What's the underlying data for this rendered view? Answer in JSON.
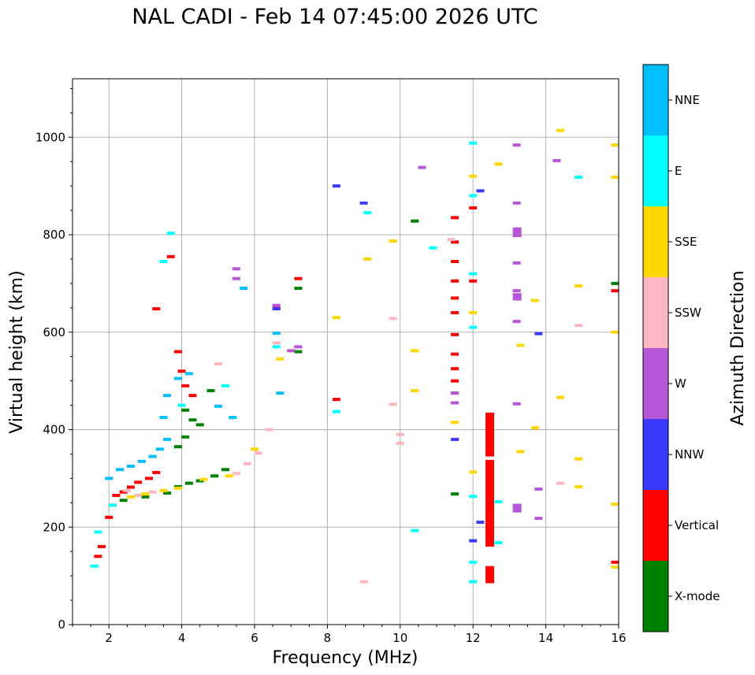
{
  "colors": {
    "X-mode": "#008000",
    "Vertical": "#ff0000",
    "NNW": "#3a3aff",
    "W": "#b557d6",
    "SSW": "#ffb6c1",
    "SSE": "#ffd700",
    "E": "#00ffff",
    "NNE": "#00bfff",
    "grid": "#b0b0b0"
  },
  "chart_data": {
    "type": "scatter",
    "title": "NAL CADI - Feb 14 07:45:00 2026 UTC",
    "xlabel": "Frequency (MHz)",
    "ylabel": "Virtual height (km)",
    "xlim": [
      1,
      16
    ],
    "ylim": [
      0,
      1120
    ],
    "xticks": [
      2,
      4,
      6,
      8,
      10,
      12,
      14,
      16
    ],
    "yticks": [
      0,
      200,
      400,
      600,
      800,
      1000
    ],
    "grid": true,
    "colorbar": {
      "label": "Azimuth Direction",
      "categories": [
        "X-mode",
        "Vertical",
        "NNW",
        "W",
        "SSW",
        "SSE",
        "E",
        "NNE"
      ]
    },
    "series": [
      {
        "name": "X-mode",
        "points": [
          [
            2.4,
            255
          ],
          [
            3.0,
            262
          ],
          [
            3.6,
            270
          ],
          [
            3.9,
            283
          ],
          [
            4.2,
            290
          ],
          [
            4.5,
            295
          ],
          [
            4.9,
            305
          ],
          [
            5.2,
            318
          ],
          [
            4.1,
            440
          ],
          [
            4.3,
            420
          ],
          [
            4.5,
            410
          ],
          [
            4.8,
            480
          ],
          [
            4.1,
            385
          ],
          [
            3.9,
            365
          ],
          [
            7.2,
            690
          ],
          [
            7.2,
            560
          ],
          [
            10.4,
            828
          ],
          [
            11.5,
            268
          ],
          [
            15.9,
            700
          ]
        ]
      },
      {
        "name": "Vertical",
        "points": [
          [
            1.7,
            140
          ],
          [
            1.8,
            160
          ],
          [
            2.0,
            220
          ],
          [
            2.1,
            245
          ],
          [
            2.2,
            265
          ],
          [
            2.4,
            272
          ],
          [
            2.6,
            282
          ],
          [
            2.8,
            292
          ],
          [
            3.1,
            300
          ],
          [
            3.3,
            312
          ],
          [
            3.9,
            560
          ],
          [
            4.0,
            520
          ],
          [
            4.1,
            490
          ],
          [
            4.3,
            470
          ],
          [
            3.7,
            755
          ],
          [
            3.3,
            648
          ],
          [
            6.6,
            650
          ],
          [
            7.2,
            710
          ],
          [
            8.25,
            462
          ],
          [
            11.5,
            835
          ],
          [
            11.5,
            785
          ],
          [
            11.5,
            745
          ],
          [
            11.5,
            705
          ],
          [
            11.5,
            670
          ],
          [
            11.5,
            640
          ],
          [
            11.5,
            595
          ],
          [
            11.5,
            555
          ],
          [
            11.5,
            525
          ],
          [
            11.5,
            500
          ],
          [
            11.5,
            475
          ],
          [
            12.0,
            855
          ],
          [
            12.0,
            705
          ],
          [
            15.9,
            685
          ],
          [
            15.9,
            128
          ]
        ]
      },
      {
        "name": "NNW",
        "points": [
          [
            8.25,
            900
          ],
          [
            9.0,
            865
          ],
          [
            12.2,
            890
          ],
          [
            12.2,
            210
          ],
          [
            13.8,
            597
          ],
          [
            11.5,
            380
          ],
          [
            12.0,
            172
          ],
          [
            6.6,
            648
          ]
        ]
      },
      {
        "name": "W",
        "points": [
          [
            6.6,
            655
          ],
          [
            5.5,
            730
          ],
          [
            5.5,
            710
          ],
          [
            7.0,
            562
          ],
          [
            7.2,
            570
          ],
          [
            10.6,
            938
          ],
          [
            13.2,
            984
          ],
          [
            13.2,
            865
          ],
          [
            13.2,
            742
          ],
          [
            13.2,
            685
          ],
          [
            13.2,
            622
          ],
          [
            13.2,
            453
          ],
          [
            13.2,
            240
          ],
          [
            13.8,
            278
          ],
          [
            13.8,
            218
          ],
          [
            14.3,
            952
          ],
          [
            11.5,
            475
          ],
          [
            11.5,
            455
          ]
        ]
      },
      {
        "name": "SSW",
        "points": [
          [
            2.5,
            275
          ],
          [
            2.8,
            265
          ],
          [
            3.2,
            272
          ],
          [
            5.5,
            310
          ],
          [
            5.8,
            330
          ],
          [
            6.1,
            352
          ],
          [
            5.0,
            535
          ],
          [
            6.4,
            400
          ],
          [
            6.6,
            578
          ],
          [
            9.8,
            628
          ],
          [
            9.8,
            452
          ],
          [
            10.0,
            390
          ],
          [
            10.0,
            372
          ],
          [
            11.4,
            790
          ],
          [
            14.9,
            614
          ],
          [
            14.4,
            290
          ],
          [
            9.0,
            88
          ]
        ]
      },
      {
        "name": "SSE",
        "points": [
          [
            2.6,
            262
          ],
          [
            3.0,
            268
          ],
          [
            3.5,
            275
          ],
          [
            3.9,
            280
          ],
          [
            4.6,
            298
          ],
          [
            5.3,
            305
          ],
          [
            6.0,
            360
          ],
          [
            6.7,
            545
          ],
          [
            8.25,
            630
          ],
          [
            9.1,
            750
          ],
          [
            9.8,
            787
          ],
          [
            10.4,
            562
          ],
          [
            10.4,
            480
          ],
          [
            11.5,
            415
          ],
          [
            12.0,
            920
          ],
          [
            12.0,
            640
          ],
          [
            12.0,
            313
          ],
          [
            12.7,
            945
          ],
          [
            13.3,
            573
          ],
          [
            13.3,
            355
          ],
          [
            13.7,
            665
          ],
          [
            13.7,
            404
          ],
          [
            14.4,
            1014
          ],
          [
            14.4,
            466
          ],
          [
            14.9,
            918
          ],
          [
            14.9,
            695
          ],
          [
            14.9,
            340
          ],
          [
            14.9,
            283
          ],
          [
            15.9,
            984
          ],
          [
            15.9,
            918
          ],
          [
            15.9,
            600
          ],
          [
            15.9,
            247
          ],
          [
            15.9,
            118
          ]
        ]
      },
      {
        "name": "E",
        "points": [
          [
            1.6,
            120
          ],
          [
            1.7,
            190
          ],
          [
            2.1,
            245
          ],
          [
            3.7,
            803
          ],
          [
            3.5,
            745
          ],
          [
            4.0,
            450
          ],
          [
            5.2,
            490
          ],
          [
            6.6,
            570
          ],
          [
            8.25,
            437
          ],
          [
            9.1,
            845
          ],
          [
            10.4,
            193
          ],
          [
            10.9,
            773
          ],
          [
            12.0,
            988
          ],
          [
            12.0,
            880
          ],
          [
            12.0,
            720
          ],
          [
            12.0,
            610
          ],
          [
            12.0,
            263
          ],
          [
            12.0,
            128
          ],
          [
            12.0,
            88
          ],
          [
            12.7,
            252
          ],
          [
            12.7,
            168
          ],
          [
            14.9,
            918
          ]
        ]
      },
      {
        "name": "NNE",
        "points": [
          [
            2.0,
            300
          ],
          [
            2.3,
            318
          ],
          [
            2.6,
            325
          ],
          [
            2.9,
            335
          ],
          [
            3.2,
            345
          ],
          [
            3.4,
            360
          ],
          [
            3.6,
            380
          ],
          [
            3.5,
            425
          ],
          [
            3.6,
            470
          ],
          [
            3.9,
            505
          ],
          [
            4.2,
            515
          ],
          [
            5.0,
            448
          ],
          [
            5.4,
            425
          ],
          [
            6.7,
            475
          ],
          [
            5.7,
            690
          ],
          [
            6.6,
            598
          ]
        ]
      }
    ],
    "blocks": [
      {
        "name": "Vertical",
        "x": 12.45,
        "y": [
          [
            160,
            338
          ],
          [
            345,
            435
          ],
          [
            85,
            120
          ]
        ]
      },
      {
        "name": "W",
        "x": 13.2,
        "y": [
          [
            230,
            248
          ],
          [
            665,
            680
          ],
          [
            795,
            815
          ]
        ]
      }
    ]
  }
}
